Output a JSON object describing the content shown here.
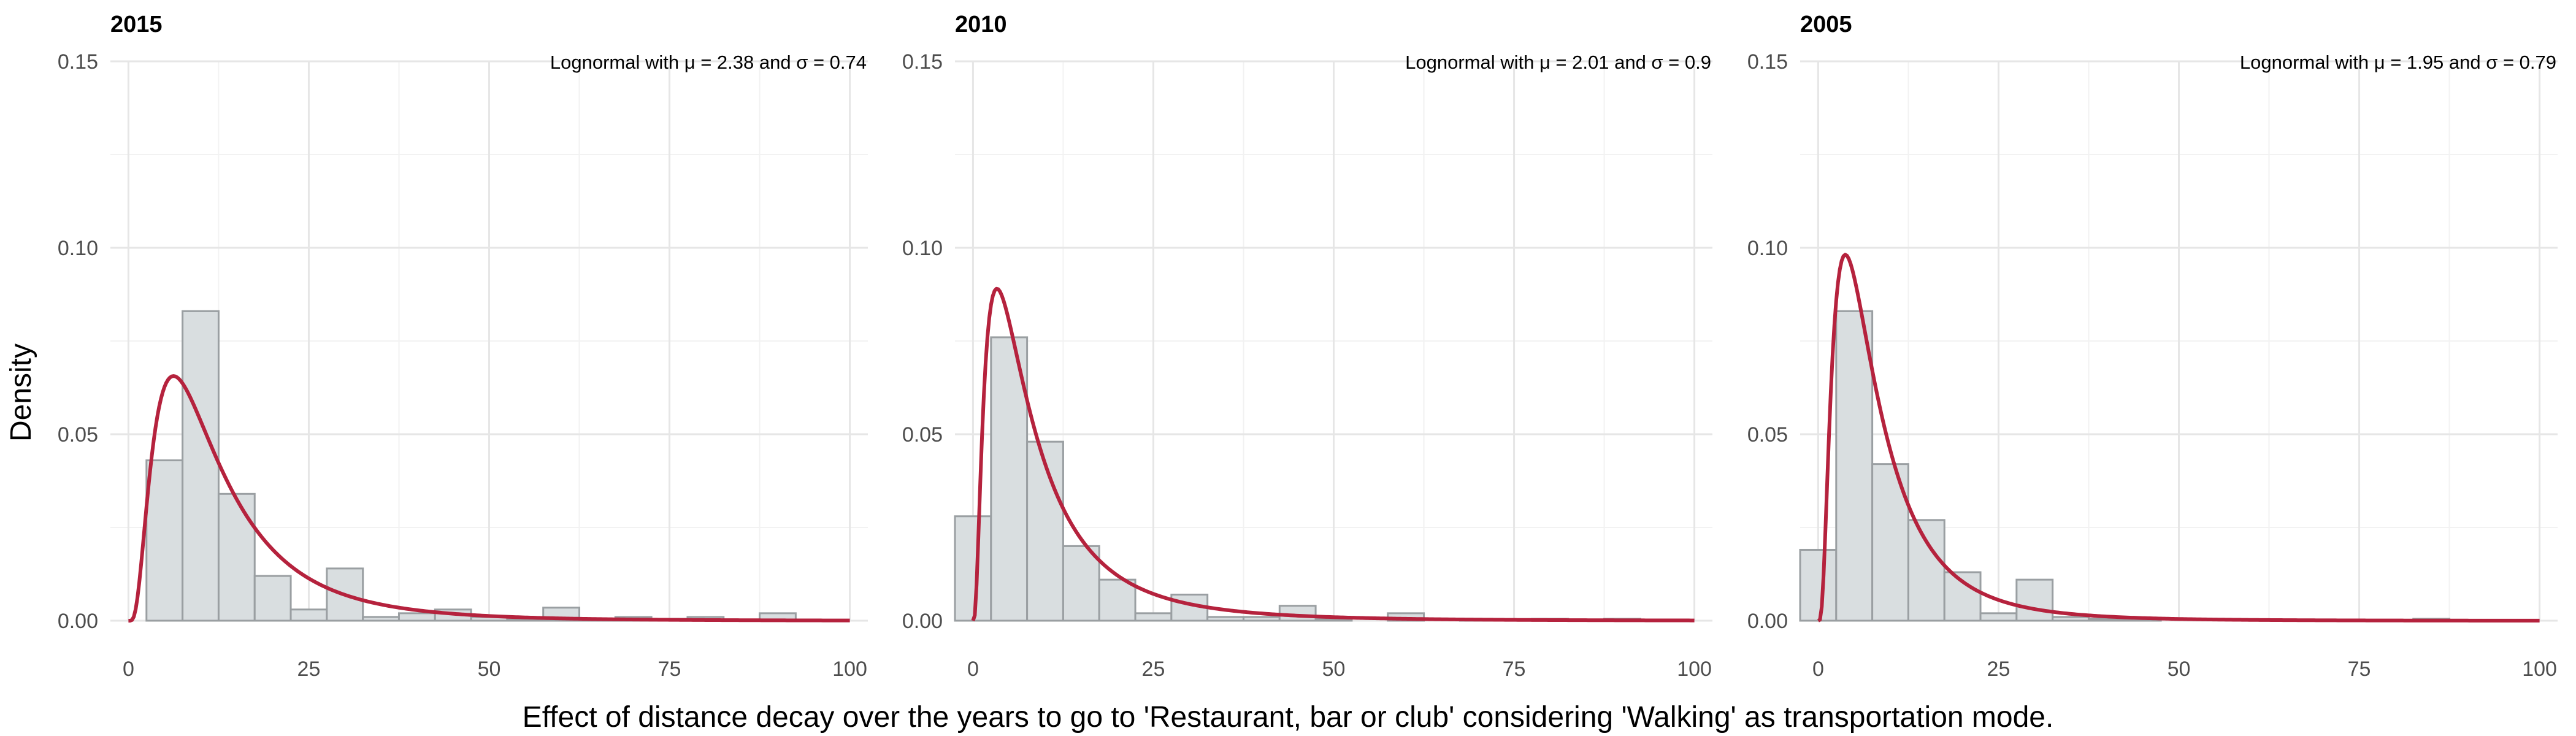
{
  "figure": {
    "xlabel": "Effect of distance decay over the years to go to 'Restaurant, bar or club' considering 'Walking' as transportation mode.",
    "ylabel": "Density"
  },
  "colors": {
    "bar_fill": "#d9dee0",
    "bar_stroke": "#9a9fa2",
    "curve": "#b5223d",
    "grid_major": "#e6e6e6",
    "grid_minor": "#f2f2f2",
    "tick_text": "#4d4d4d"
  },
  "chart_data": [
    {
      "type": "bar",
      "title": "2015",
      "annotation": "Lognormal with μ = 2.38 and σ = 0.74",
      "fit": {
        "distribution": "lognormal",
        "mu": 2.38,
        "sigma": 0.74
      },
      "bin_width": 5,
      "bin_starts": [
        -2.5,
        2.5,
        7.5,
        12.5,
        17.5,
        22.5,
        27.5,
        32.5,
        37.5,
        42.5,
        47.5,
        52.5,
        57.5,
        62.5,
        67.5,
        72.5,
        77.5,
        82.5,
        87.5,
        92.5
      ],
      "values": [
        0.0,
        0.043,
        0.083,
        0.034,
        0.012,
        0.003,
        0.014,
        0.001,
        0.002,
        0.003,
        0.001,
        0.0005,
        0.0035,
        0.0005,
        0.001,
        0.0005,
        0.001,
        0.0,
        0.002,
        0.0
      ],
      "xlim": [
        -2.5,
        102.5
      ],
      "ylim": [
        0,
        0.15
      ],
      "xticks": [
        0,
        25,
        50,
        75,
        100
      ],
      "yticks": [
        0.0,
        0.05,
        0.1,
        0.15
      ],
      "ytick_labels": [
        "0.00",
        "0.05",
        "0.10",
        "0.15"
      ],
      "xtick_labels": [
        "0",
        "25",
        "50",
        "75",
        "100"
      ]
    },
    {
      "type": "bar",
      "title": "2010",
      "annotation": "Lognormal with μ = 2.01 and σ = 0.9",
      "fit": {
        "distribution": "lognormal",
        "mu": 2.01,
        "sigma": 0.9
      },
      "bin_width": 5,
      "bin_starts": [
        -2.5,
        2.5,
        7.5,
        12.5,
        17.5,
        22.5,
        27.5,
        32.5,
        37.5,
        42.5,
        47.5,
        52.5,
        57.5,
        62.5,
        67.5,
        72.5,
        77.5,
        82.5,
        87.5,
        92.5
      ],
      "values": [
        0.028,
        0.076,
        0.048,
        0.02,
        0.011,
        0.002,
        0.007,
        0.001,
        0.001,
        0.004,
        0.0005,
        0.0,
        0.002,
        0.0,
        0.0005,
        0.0,
        0.0005,
        0.0,
        0.0005,
        0.0
      ],
      "xlim": [
        -2.5,
        102.5
      ],
      "ylim": [
        0,
        0.15
      ],
      "xticks": [
        0,
        25,
        50,
        75,
        100
      ],
      "yticks": [
        0.0,
        0.05,
        0.1,
        0.15
      ],
      "ytick_labels": [
        "0.00",
        "0.05",
        "0.10",
        "0.15"
      ],
      "xtick_labels": [
        "0",
        "25",
        "50",
        "75",
        "100"
      ]
    },
    {
      "type": "bar",
      "title": "2005",
      "annotation": "Lognormal with μ = 1.95 and σ = 0.79",
      "fit": {
        "distribution": "lognormal",
        "mu": 1.95,
        "sigma": 0.79
      },
      "bin_width": 5,
      "bin_starts": [
        -2.5,
        2.5,
        7.5,
        12.5,
        17.5,
        22.5,
        27.5,
        32.5,
        37.5,
        42.5,
        47.5,
        52.5,
        57.5,
        62.5,
        67.5,
        72.5,
        77.5,
        82.5,
        87.5,
        92.5
      ],
      "values": [
        0.019,
        0.083,
        0.042,
        0.027,
        0.013,
        0.002,
        0.011,
        0.001,
        0.0005,
        0.0005,
        0.0,
        0.0,
        0.0,
        0.0,
        0.0,
        0.0,
        0.0,
        0.0005,
        0.0,
        0.0
      ],
      "xlim": [
        -2.5,
        102.5
      ],
      "ylim": [
        0,
        0.15
      ],
      "xticks": [
        0,
        25,
        50,
        75,
        100
      ],
      "yticks": [
        0.0,
        0.05,
        0.1,
        0.15
      ],
      "ytick_labels": [
        "0.00",
        "0.05",
        "0.10",
        "0.15"
      ],
      "xtick_labels": [
        "0",
        "25",
        "50",
        "75",
        "100"
      ]
    }
  ]
}
